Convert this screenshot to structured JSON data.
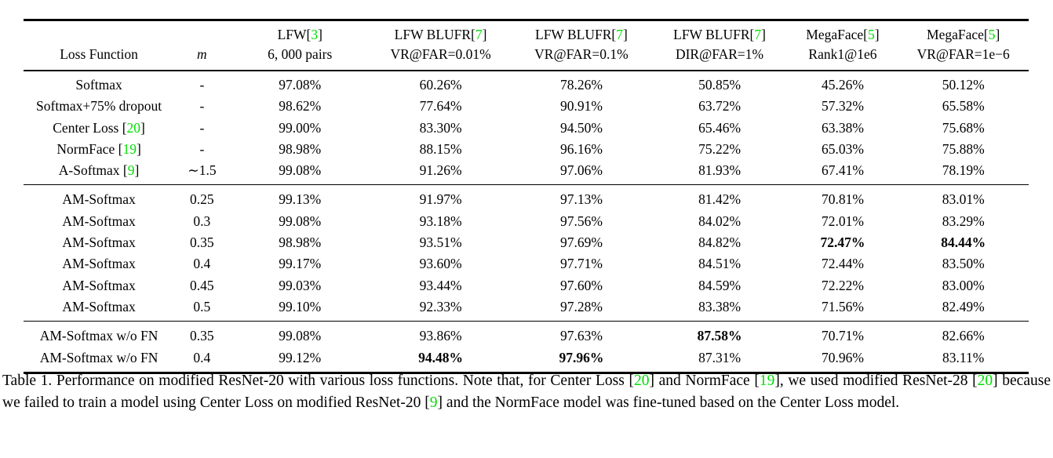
{
  "colors": {
    "citation_green": "#00DF00",
    "text": "#000000",
    "background": "#ffffff"
  },
  "table": {
    "widths": [
      15,
      5.5,
      14,
      14,
      14,
      13.5,
      11,
      13
    ],
    "columns": [
      {
        "top_pre": "",
        "cite": "",
        "top_post": "",
        "bottom": "Loss Function",
        "italic": false
      },
      {
        "top_pre": "",
        "cite": "",
        "top_post": "",
        "bottom": "m",
        "italic": true
      },
      {
        "top_pre": "LFW[",
        "cite": "3",
        "top_post": "]",
        "bottom": "6, 000 pairs",
        "italic": false
      },
      {
        "top_pre": "LFW BLUFR[",
        "cite": "7",
        "top_post": "]",
        "bottom": "VR@FAR=0.01%",
        "italic": false
      },
      {
        "top_pre": "LFW BLUFR[",
        "cite": "7",
        "top_post": "]",
        "bottom": "VR@FAR=0.1%",
        "italic": false
      },
      {
        "top_pre": "LFW BLUFR[",
        "cite": "7",
        "top_post": "]",
        "bottom": "DIR@FAR=1%",
        "italic": false
      },
      {
        "top_pre": "MegaFace[",
        "cite": "5",
        "top_post": "]",
        "bottom": "Rank1@1e6",
        "italic": false
      },
      {
        "top_pre": "MegaFace[",
        "cite": "5",
        "top_post": "]",
        "bottom": "VR@FAR=1e−6",
        "italic": false
      }
    ],
    "rows": [
      {
        "label_pre": "Softmax",
        "cite": "",
        "label_post": "",
        "m": "-",
        "values": [
          "97.08%",
          "60.26%",
          "78.26%",
          "50.85%",
          "45.26%",
          "50.12%"
        ],
        "bold": [],
        "group_start": false,
        "group_end": false
      },
      {
        "label_pre": "Softmax+75% dropout",
        "cite": "",
        "label_post": "",
        "m": "-",
        "values": [
          "98.62%",
          "77.64%",
          "90.91%",
          "63.72%",
          "57.32%",
          "65.58%"
        ],
        "bold": [],
        "group_start": false,
        "group_end": false
      },
      {
        "label_pre": "Center Loss [",
        "cite": "20",
        "label_post": "]",
        "m": "-",
        "values": [
          "99.00%",
          "83.30%",
          "94.50%",
          "65.46%",
          "63.38%",
          "75.68%"
        ],
        "bold": [],
        "group_start": false,
        "group_end": false
      },
      {
        "label_pre": "NormFace [",
        "cite": "19",
        "label_post": "]",
        "m": "-",
        "values": [
          "98.98%",
          "88.15%",
          "96.16%",
          "75.22%",
          "65.03%",
          "75.88%"
        ],
        "bold": [],
        "group_start": false,
        "group_end": false
      },
      {
        "label_pre": "A-Softmax [",
        "cite": "9",
        "label_post": "]",
        "m": "∼1.5",
        "values": [
          "99.08%",
          "91.26%",
          "97.06%",
          "81.93%",
          "67.41%",
          "78.19%"
        ],
        "bold": [],
        "group_start": false,
        "group_end": true
      },
      {
        "label_pre": "AM-Softmax",
        "cite": "",
        "label_post": "",
        "m": "0.25",
        "values": [
          "99.13%",
          "91.97%",
          "97.13%",
          "81.42%",
          "70.81%",
          "83.01%"
        ],
        "bold": [],
        "group_start": true,
        "group_end": false
      },
      {
        "label_pre": "AM-Softmax",
        "cite": "",
        "label_post": "",
        "m": "0.3",
        "values": [
          "99.08%",
          "93.18%",
          "97.56%",
          "84.02%",
          "72.01%",
          "83.29%"
        ],
        "bold": [],
        "group_start": false,
        "group_end": false
      },
      {
        "label_pre": "AM-Softmax",
        "cite": "",
        "label_post": "",
        "m": "0.35",
        "values": [
          "98.98%",
          "93.51%",
          "97.69%",
          "84.82%",
          "72.47%",
          "84.44%"
        ],
        "bold": [
          4,
          5
        ],
        "group_start": false,
        "group_end": false
      },
      {
        "label_pre": "AM-Softmax",
        "cite": "",
        "label_post": "",
        "m": "0.4",
        "values": [
          "99.17%",
          "93.60%",
          "97.71%",
          "84.51%",
          "72.44%",
          "83.50%"
        ],
        "bold": [],
        "group_start": false,
        "group_end": false
      },
      {
        "label_pre": "AM-Softmax",
        "cite": "",
        "label_post": "",
        "m": "0.45",
        "values": [
          "99.03%",
          "93.44%",
          "97.60%",
          "84.59%",
          "72.22%",
          "83.00%"
        ],
        "bold": [],
        "group_start": false,
        "group_end": false
      },
      {
        "label_pre": "AM-Softmax",
        "cite": "",
        "label_post": "",
        "m": "0.5",
        "values": [
          "99.10%",
          "92.33%",
          "97.28%",
          "83.38%",
          "71.56%",
          "82.49%"
        ],
        "bold": [],
        "group_start": false,
        "group_end": true
      },
      {
        "label_pre": "AM-Softmax w/o FN",
        "cite": "",
        "label_post": "",
        "m": "0.35",
        "values": [
          "99.08%",
          "93.86%",
          "97.63%",
          "87.58%",
          "70.71%",
          "82.66%"
        ],
        "bold": [
          3
        ],
        "group_start": true,
        "group_end": false
      },
      {
        "label_pre": "AM-Softmax w/o FN",
        "cite": "",
        "label_post": "",
        "m": "0.4",
        "values": [
          "99.12%",
          "94.48%",
          "97.96%",
          "87.31%",
          "70.96%",
          "83.11%"
        ],
        "bold": [
          1,
          2
        ],
        "group_start": false,
        "group_end": true
      }
    ]
  },
  "caption": {
    "segments": [
      {
        "text": "Table 1. Performance on modified ResNet-20 with various loss functions. Note that, for Center Loss ["
      },
      {
        "cite": "20"
      },
      {
        "text": "] and NormFace ["
      },
      {
        "cite": "19"
      },
      {
        "text": "], we used modified ResNet-28 ["
      },
      {
        "cite": "20"
      },
      {
        "text": "] because we failed to train a model using Center Loss on modified ResNet-20 ["
      },
      {
        "cite": "9"
      },
      {
        "text": "] and the NormFace model was fine-tuned based on the Center Loss model."
      }
    ]
  }
}
